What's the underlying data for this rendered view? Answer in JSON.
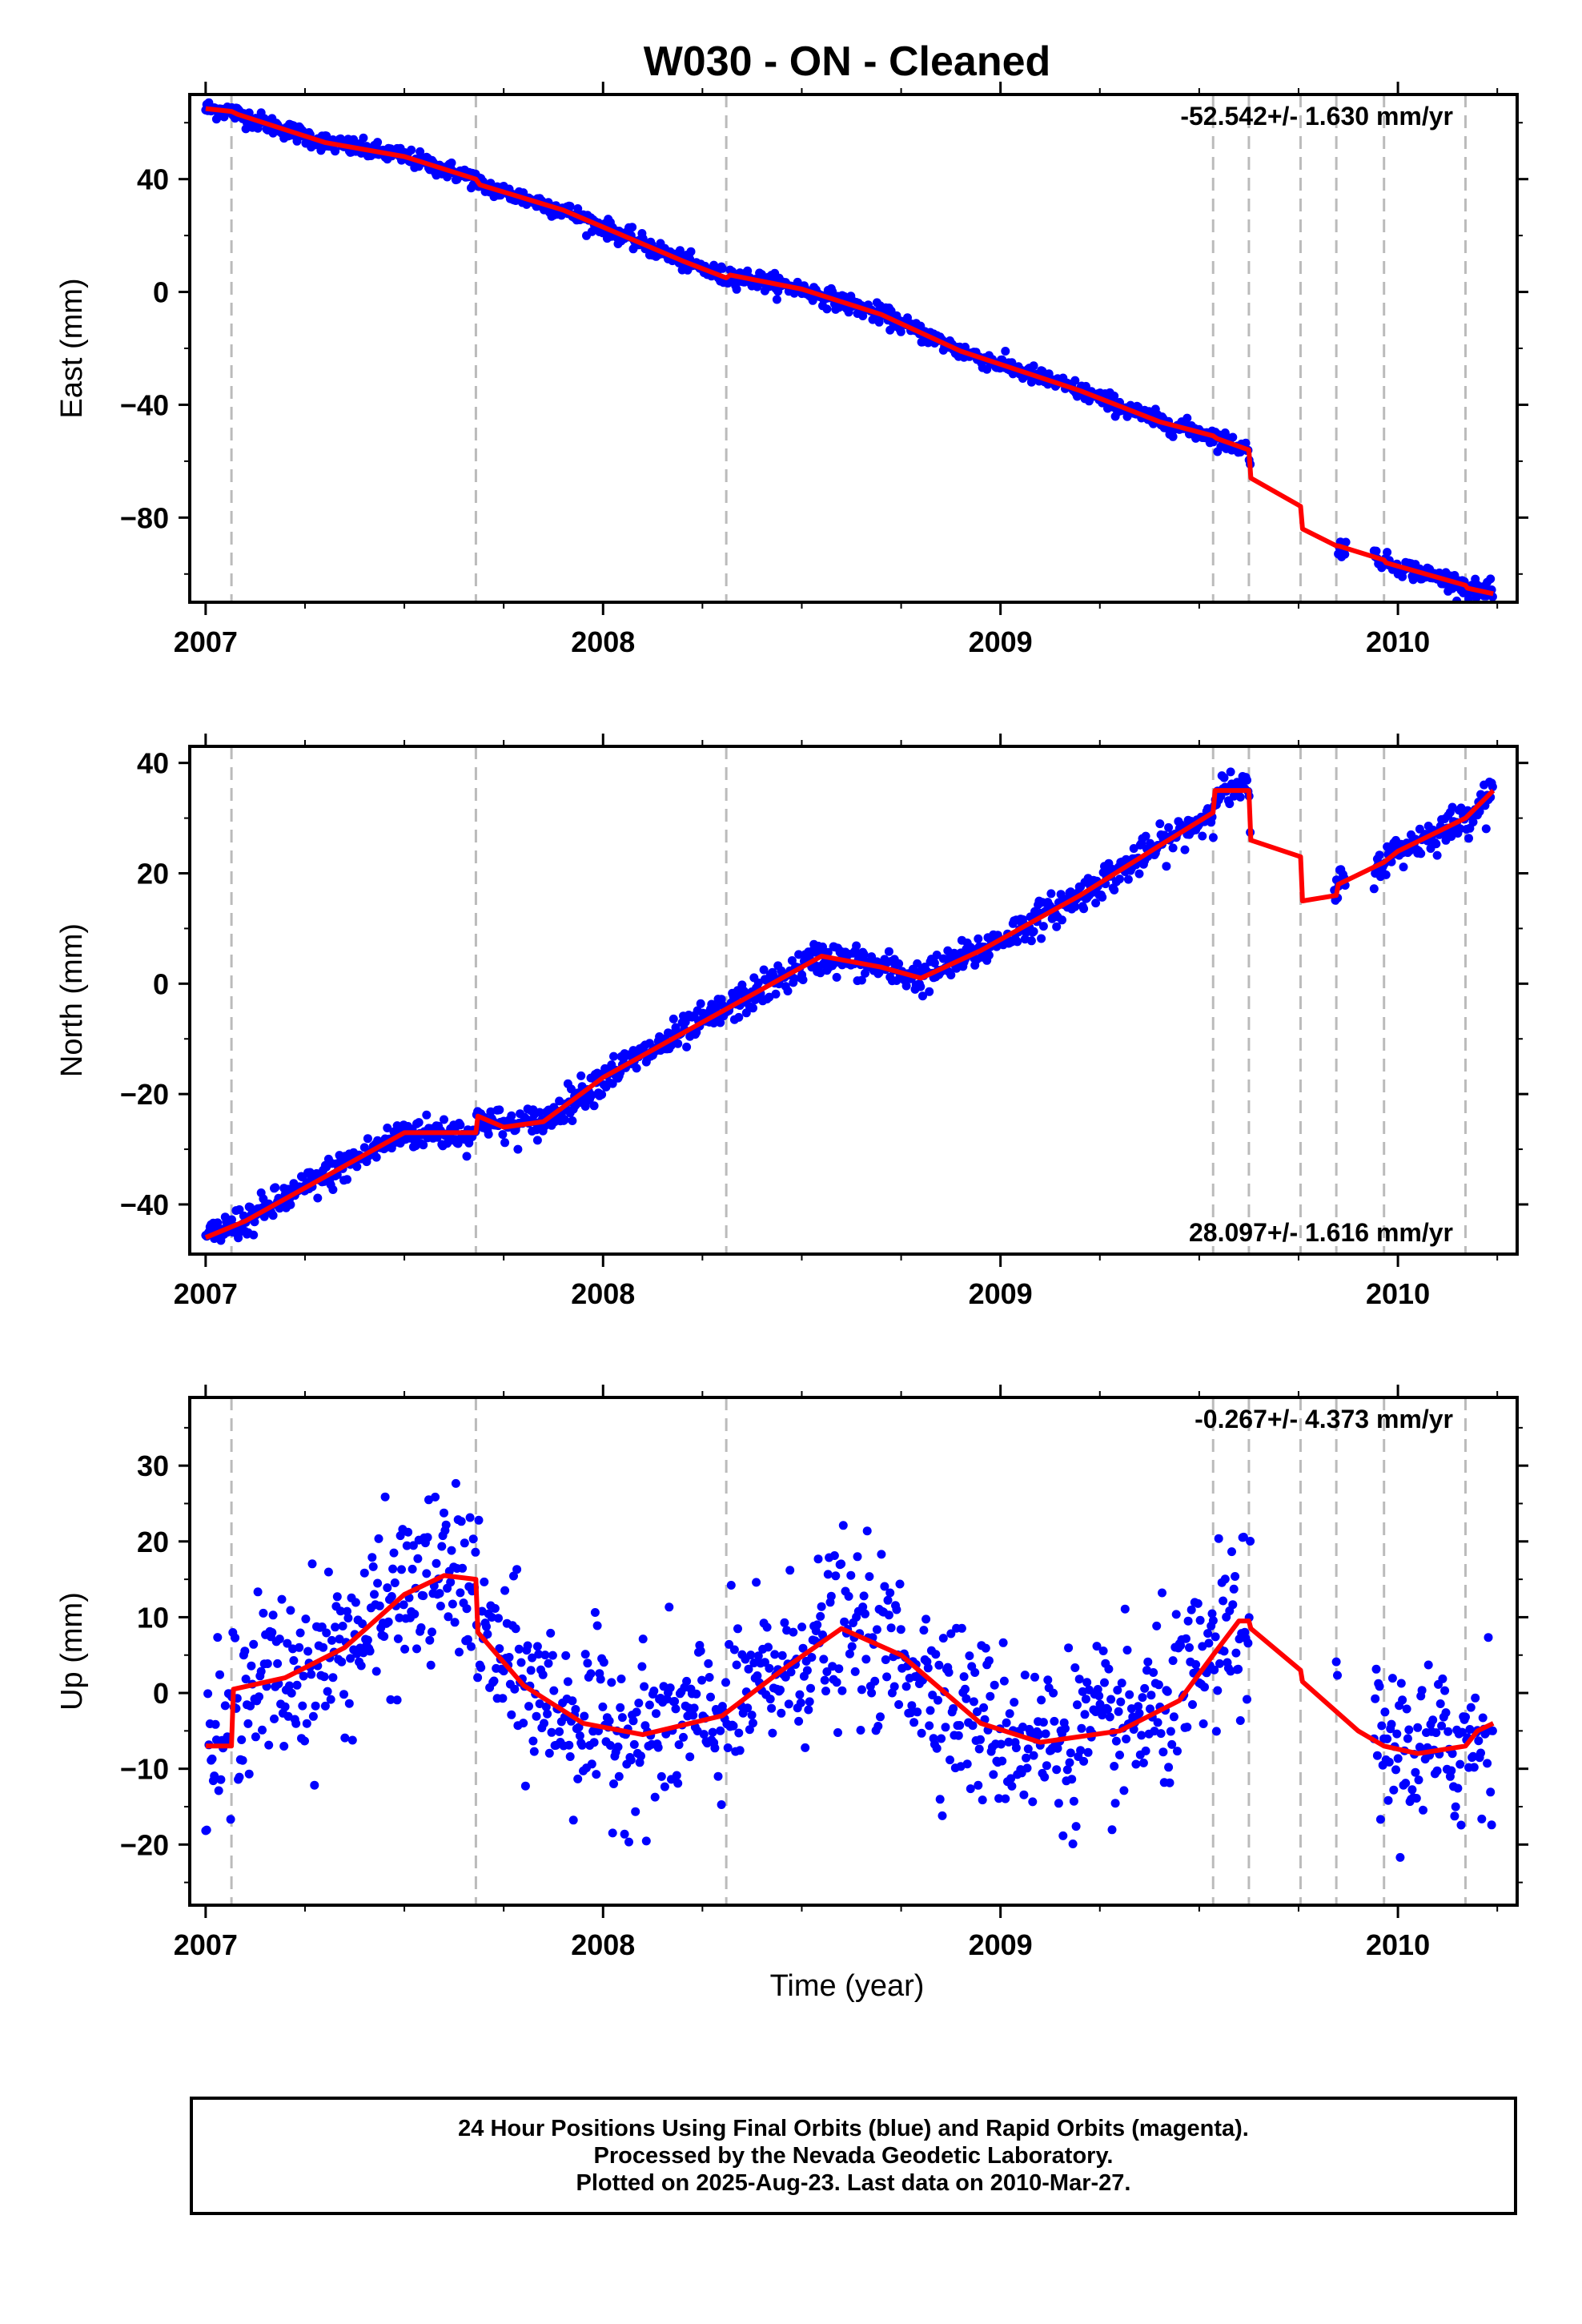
{
  "title": "W030  - ON - Cleaned",
  "xlabel": "Time (year)",
  "footer": {
    "line1": "24 Hour Positions Using Final Orbits (blue) and Rapid Orbits (magenta).",
    "line2": "Processed by the Nevada Geodetic Laboratory.",
    "line3": "Plotted on 2025-Aug-23. Last data on 2010-Mar-27."
  },
  "colors": {
    "points": "#0000ff",
    "model": "#ff0000",
    "breaks": "#bbbbbb",
    "frame": "#000000"
  },
  "chart_data": [
    {
      "type": "scatter",
      "name": "east",
      "ylabel": "East (mm)",
      "rate_label": "-52.542+/- 1.630 mm/yr",
      "rate_position": "top-right",
      "xlim": [
        2006.96,
        2010.3
      ],
      "ylim": [
        -110,
        70
      ],
      "xticks": [
        2007,
        2008,
        2009,
        2010
      ],
      "yticks": [
        40,
        0,
        -40,
        -80
      ],
      "breaks": [
        2007.065,
        2007.68,
        2008.31,
        2009.535,
        2009.625,
        2009.755,
        2009.845,
        2009.965,
        2010.17
      ],
      "model": {
        "x": [
          2007.0,
          2007.065,
          2007.08,
          2007.3,
          2007.5,
          2007.68,
          2007.69,
          2007.9,
          2008.2,
          2008.31,
          2008.32,
          2008.5,
          2008.7,
          2008.9,
          2009.2,
          2009.4,
          2009.535,
          2009.545,
          2009.625,
          2009.63,
          2009.755,
          2009.76,
          2009.845,
          2009.85,
          2009.965,
          2009.97,
          2010.17,
          2010.175,
          2010.24
        ],
        "y": [
          65,
          64,
          63,
          53,
          48,
          40,
          38,
          29,
          11,
          5,
          6,
          1,
          -8,
          -21,
          -35,
          -46,
          -51,
          -52,
          -56,
          -66,
          -76,
          -84,
          -90,
          -90,
          -95,
          -96,
          -104,
          -105,
          -107
        ]
      },
      "points": {
        "segments": [
          [
            2007.0,
            2009.63
          ],
          [
            2009.85,
            2009.87
          ],
          [
            2009.94,
            2010.24
          ]
        ],
        "noise": 1.6
      }
    },
    {
      "type": "scatter",
      "name": "north",
      "ylabel": "North (mm)",
      "rate_label": "28.097+/- 1.616 mm/yr",
      "rate_position": "bottom-right",
      "xlim": [
        2006.96,
        2010.3
      ],
      "ylim": [
        -49,
        43
      ],
      "xticks": [
        2007,
        2008,
        2009,
        2010
      ],
      "yticks": [
        40,
        20,
        0,
        -20,
        -40
      ],
      "breaks": [
        2007.065,
        2007.68,
        2008.31,
        2009.535,
        2009.625,
        2009.755,
        2009.845,
        2009.965,
        2010.17
      ],
      "model": {
        "x": [
          2007.0,
          2007.1,
          2007.3,
          2007.5,
          2007.68,
          2007.685,
          2007.75,
          2007.85,
          2008.0,
          2008.2,
          2008.4,
          2008.55,
          2008.7,
          2008.8,
          2008.95,
          2009.2,
          2009.4,
          2009.535,
          2009.54,
          2009.625,
          2009.63,
          2009.755,
          2009.76,
          2009.845,
          2009.85,
          2009.965,
          2010.0,
          2010.17,
          2010.24
        ],
        "y": [
          -46,
          -43,
          -35,
          -27,
          -27,
          -24,
          -26,
          -25,
          -17,
          -9,
          -1,
          5,
          3,
          1,
          6,
          16,
          25,
          31,
          35,
          35,
          26,
          23,
          15,
          16,
          18,
          22,
          24,
          30,
          35
        ]
      },
      "points": {
        "segments": [
          [
            2007.0,
            2009.63
          ],
          [
            2009.84,
            2009.87
          ],
          [
            2009.94,
            2010.24
          ]
        ],
        "noise": 1.5
      }
    },
    {
      "type": "scatter",
      "name": "up",
      "ylabel": "Up (mm)",
      "rate_label": "-0.267+/- 4.373 mm/yr",
      "rate_position": "top-right",
      "xlim": [
        2006.96,
        2010.3
      ],
      "ylim": [
        -28,
        39
      ],
      "xticks": [
        2007,
        2008,
        2009,
        2010
      ],
      "yticks": [
        30,
        20,
        10,
        0,
        -10,
        -20
      ],
      "breaks": [
        2007.065,
        2007.68,
        2008.31,
        2009.535,
        2009.625,
        2009.755,
        2009.845,
        2009.965,
        2010.17
      ],
      "model": {
        "x": [
          2007.0,
          2007.065,
          2007.07,
          2007.2,
          2007.35,
          2007.5,
          2007.6,
          2007.68,
          2007.685,
          2007.8,
          2007.95,
          2008.1,
          2008.3,
          2008.45,
          2008.6,
          2008.75,
          2008.95,
          2009.1,
          2009.3,
          2009.45,
          2009.535,
          2009.6,
          2009.625,
          2009.63,
          2009.755,
          2009.76,
          2009.9,
          2009.965,
          2010.05,
          2010.17,
          2010.2,
          2010.24
        ],
        "y": [
          -7,
          -7,
          0.5,
          2,
          6,
          13,
          15.5,
          15,
          8,
          1,
          -4,
          -5.5,
          -3,
          3,
          8.5,
          5,
          -4,
          -6.5,
          -5,
          -1,
          5,
          9.5,
          9.5,
          8.5,
          3,
          1.5,
          -5,
          -7,
          -8,
          -7,
          -5,
          -4
        ]
      },
      "points": {
        "segments": [
          [
            2007.0,
            2009.63
          ],
          [
            2009.845,
            2009.85
          ],
          [
            2009.94,
            2010.24
          ]
        ],
        "noise": 5.5
      }
    }
  ]
}
